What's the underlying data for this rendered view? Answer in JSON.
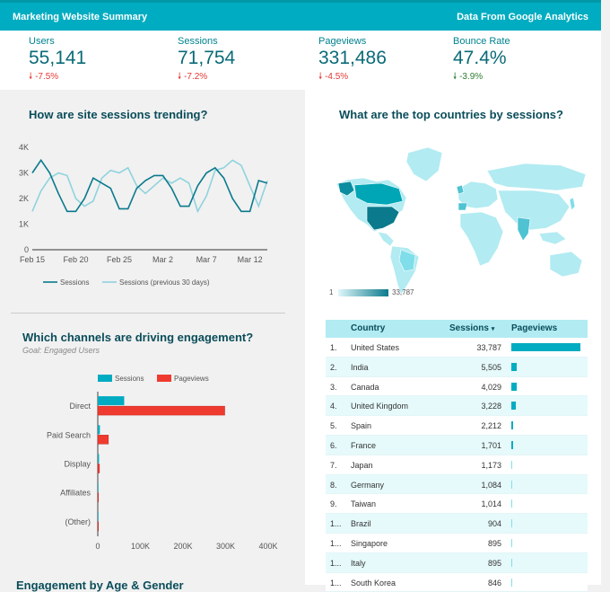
{
  "header": {
    "title": "Marketing Website Summary",
    "source": "Data From Google Analytics"
  },
  "kpis": [
    {
      "label": "Users",
      "value": "55,141",
      "delta": "-7.5%",
      "direction": "down"
    },
    {
      "label": "Sessions",
      "value": "71,754",
      "delta": "-7.2%",
      "direction": "down"
    },
    {
      "label": "Pageviews",
      "value": "331,486",
      "delta": "-4.5%",
      "direction": "down"
    },
    {
      "label": "Bounce Rate",
      "value": "47.4%",
      "delta": "-3.9%",
      "direction": "down"
    }
  ],
  "trend": {
    "title": "How are site sessions trending?",
    "legend": [
      "Sessions",
      "Sessions (previous 30 days)"
    ]
  },
  "map": {
    "title": "What are the top countries by sessions?",
    "scale_min": "1",
    "scale_max": "33,787"
  },
  "channels": {
    "title": "Which channels are driving engagement?",
    "subtitle": "Goal: Engaged Users",
    "legend": [
      "Sessions",
      "Pageviews"
    ]
  },
  "table": {
    "headers": [
      "Country",
      "Sessions",
      "Pageviews"
    ],
    "sort_icon": "sort-down-icon",
    "rows": [
      {
        "idx": "1.",
        "country": "United States",
        "sessions": "33,787",
        "pv": 1.0
      },
      {
        "idx": "2.",
        "country": "India",
        "sessions": "5,505",
        "pv": 0.08
      },
      {
        "idx": "3.",
        "country": "Canada",
        "sessions": "4,029",
        "pv": 0.08
      },
      {
        "idx": "4.",
        "country": "United Kingdom",
        "sessions": "3,228",
        "pv": 0.06
      },
      {
        "idx": "5.",
        "country": "Spain",
        "sessions": "2,212",
        "pv": 0.03
      },
      {
        "idx": "6.",
        "country": "France",
        "sessions": "1,701",
        "pv": 0.03
      },
      {
        "idx": "7.",
        "country": "Japan",
        "sessions": "1,173",
        "pv": 0.015
      },
      {
        "idx": "8.",
        "country": "Germany",
        "sessions": "1,084",
        "pv": 0.015
      },
      {
        "idx": "9.",
        "country": "Taiwan",
        "sessions": "1,014",
        "pv": 0.015
      },
      {
        "idx": "1...",
        "country": "Brazil",
        "sessions": "904",
        "pv": 0.012
      },
      {
        "idx": "1...",
        "country": "Singapore",
        "sessions": "895",
        "pv": 0.012
      },
      {
        "idx": "1...",
        "country": "Italy",
        "sessions": "895",
        "pv": 0.012
      },
      {
        "idx": "1...",
        "country": "South Korea",
        "sessions": "846",
        "pv": 0.012
      }
    ]
  },
  "bottom": {
    "title": "Engagement by Age & Gender"
  },
  "colors": {
    "accent": "#00acc1",
    "sessions_line": "#0a7a8c",
    "prev_line": "#8fd3dd",
    "pageviews_bar": "#ef3b2f"
  },
  "chart_data": [
    {
      "type": "line",
      "x_ticks": [
        "Feb 15",
        "Feb 20",
        "Feb 25",
        "Mar 2",
        "Mar 7",
        "Mar 12"
      ],
      "y_ticks": [
        "0",
        "1K",
        "2K",
        "3K",
        "4K"
      ],
      "ylim": [
        0,
        4000
      ],
      "series": [
        {
          "name": "Sessions",
          "values": [
            3000,
            3500,
            3000,
            2200,
            1500,
            1500,
            2000,
            2800,
            2600,
            2400,
            1600,
            1600,
            2400,
            2700,
            2900,
            2900,
            2400,
            1700,
            1700,
            2500,
            3000,
            3200,
            2800,
            2000,
            1500,
            1500,
            2700,
            2600
          ]
        },
        {
          "name": "Sessions (previous 30 days)",
          "values": [
            1500,
            2300,
            2800,
            3000,
            2900,
            2000,
            1700,
            1900,
            2800,
            3100,
            3000,
            3200,
            2500,
            2200,
            2500,
            2800,
            2600,
            2800,
            2600,
            1500,
            2100,
            3100,
            3200,
            3500,
            3300,
            2500,
            1700,
            2700
          ]
        }
      ]
    },
    {
      "type": "bar",
      "orientation": "horizontal",
      "categories": [
        "Direct",
        "Paid Search",
        "Display",
        "Affiliates",
        "(Other)"
      ],
      "x_ticks": [
        "0",
        "100K",
        "200K",
        "300K",
        "400K"
      ],
      "xlim": [
        0,
        400000
      ],
      "series": [
        {
          "name": "Sessions",
          "values": [
            62000,
            5000,
            3000,
            500,
            300
          ]
        },
        {
          "name": "Pageviews",
          "values": [
            298000,
            25000,
            4000,
            800,
            500
          ]
        }
      ]
    }
  ]
}
